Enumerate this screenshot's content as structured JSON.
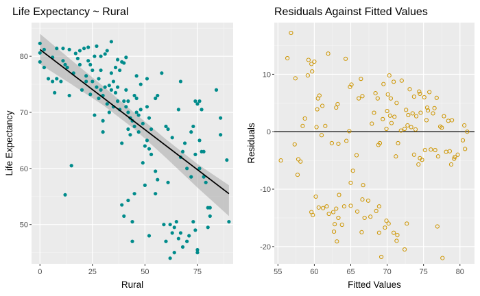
{
  "chart_data": [
    {
      "type": "scatter",
      "title": "Life Expectancy ~ Rural",
      "xlabel": "Rural",
      "ylabel": "Life Expectancy",
      "xlim": [
        -4,
        92
      ],
      "ylim": [
        43,
        86
      ],
      "xticks": [
        0,
        25,
        50,
        75
      ],
      "yticks": [
        50,
        60,
        70,
        80
      ],
      "x_tick_labels": [
        "0",
        "25",
        "50",
        "75"
      ],
      "y_tick_labels": [
        "50",
        "60",
        "70",
        "80"
      ],
      "grid": true,
      "point_color": "#008b8b",
      "point_style": "filled",
      "smooth": {
        "method": "linear fit with confidence band",
        "line_color": "#000000",
        "band_color": "#999999",
        "line": [
          [
            0,
            81.2
          ],
          [
            90,
            55.5
          ]
        ],
        "band_upper": [
          [
            0,
            84.0
          ],
          [
            15,
            79.3
          ],
          [
            30,
            74.7
          ],
          [
            45,
            69.9
          ],
          [
            60,
            65.2
          ],
          [
            75,
            60.8
          ],
          [
            90,
            57.0
          ]
        ],
        "band_lower": [
          [
            0,
            78.6
          ],
          [
            15,
            75.0
          ],
          [
            30,
            71.3
          ],
          [
            45,
            67.0
          ],
          [
            60,
            61.9
          ],
          [
            75,
            56.6
          ],
          [
            90,
            51.5
          ]
        ]
      },
      "points": [
        [
          0,
          82.3
        ],
        [
          0,
          80.6
        ],
        [
          0,
          79.0
        ],
        [
          2,
          81.2
        ],
        [
          2,
          78.0
        ],
        [
          4,
          76.0
        ],
        [
          6,
          79.8
        ],
        [
          6,
          75.5
        ],
        [
          7,
          73.5
        ],
        [
          8,
          81.4
        ],
        [
          8,
          76.0
        ],
        [
          10,
          75.5
        ],
        [
          11,
          81.4
        ],
        [
          11,
          79.2
        ],
        [
          12,
          78.5
        ],
        [
          12,
          55.3
        ],
        [
          13,
          78.0
        ],
        [
          14,
          81.2
        ],
        [
          14,
          73.0
        ],
        [
          15,
          60.5
        ],
        [
          16,
          77.0
        ],
        [
          17,
          80.5
        ],
        [
          18,
          79.6
        ],
        [
          19,
          81.0
        ],
        [
          19,
          78.5
        ],
        [
          20,
          74.0
        ],
        [
          21,
          81.4
        ],
        [
          22,
          76.5
        ],
        [
          22,
          75.5
        ],
        [
          23,
          81.6
        ],
        [
          23,
          79.2
        ],
        [
          24,
          78.5
        ],
        [
          24,
          73.2
        ],
        [
          25,
          77.5
        ],
        [
          25,
          75.5
        ],
        [
          26,
          80.0
        ],
        [
          26,
          69.5
        ],
        [
          27,
          81.8
        ],
        [
          27,
          74.5
        ],
        [
          28,
          76.0
        ],
        [
          28,
          72.5
        ],
        [
          29,
          80.0
        ],
        [
          29,
          77.5
        ],
        [
          29,
          74.0
        ],
        [
          30,
          73.0
        ],
        [
          30,
          68.5
        ],
        [
          30,
          66.5
        ],
        [
          31,
          80.4
        ],
        [
          31,
          74.5
        ],
        [
          32,
          81.0
        ],
        [
          32,
          71.5
        ],
        [
          33,
          74.8
        ],
        [
          33,
          70.0
        ],
        [
          34,
          82.6
        ],
        [
          34,
          77.0
        ],
        [
          34,
          74.0
        ],
        [
          35,
          75.5
        ],
        [
          35,
          71.0
        ],
        [
          36,
          78.0
        ],
        [
          36,
          73.5
        ],
        [
          37,
          79.4
        ],
        [
          37,
          74.5
        ],
        [
          37,
          72.0
        ],
        [
          38,
          77.5
        ],
        [
          38,
          70.5
        ],
        [
          39,
          79.0
        ],
        [
          39,
          64.5
        ],
        [
          39,
          53.5
        ],
        [
          40,
          78.8
        ],
        [
          40,
          72.0
        ],
        [
          40,
          51.5
        ],
        [
          41,
          79.8
        ],
        [
          41,
          74.0
        ],
        [
          41,
          71.0
        ],
        [
          42,
          72.0
        ],
        [
          42,
          70.0
        ],
        [
          42,
          67.0
        ],
        [
          42,
          54.3
        ],
        [
          43,
          69.0
        ],
        [
          43,
          66.0
        ],
        [
          44,
          68.5
        ],
        [
          44,
          50.5
        ],
        [
          44,
          47.0
        ],
        [
          45,
          73.0
        ],
        [
          45,
          67.5
        ],
        [
          45,
          55.5
        ],
        [
          46,
          76.5
        ],
        [
          46,
          72.5
        ],
        [
          46,
          70.0
        ],
        [
          47,
          69.5
        ],
        [
          47,
          66.5
        ],
        [
          48,
          75.0
        ],
        [
          48,
          70.5
        ],
        [
          49,
          68.0
        ],
        [
          49,
          61.0
        ],
        [
          50,
          64.0
        ],
        [
          50,
          57.0
        ],
        [
          51,
          76.0
        ],
        [
          51,
          71.0
        ],
        [
          51,
          65.0
        ],
        [
          52,
          69.0
        ],
        [
          52,
          63.5
        ],
        [
          52,
          48.0
        ],
        [
          53,
          67.0
        ],
        [
          53,
          62.5
        ],
        [
          55,
          72.5
        ],
        [
          55,
          59.5
        ],
        [
          55,
          55.5
        ],
        [
          56,
          73.0
        ],
        [
          56,
          58.0
        ],
        [
          58,
          77.0
        ],
        [
          59,
          50.0
        ],
        [
          60,
          47.0
        ],
        [
          60,
          67.5
        ],
        [
          61,
          67.0
        ],
        [
          61,
          57.5
        ],
        [
          62,
          50.0
        ],
        [
          62,
          44.0
        ],
        [
          63,
          65.5
        ],
        [
          63,
          48.5
        ],
        [
          64,
          45.0
        ],
        [
          64,
          49.5
        ],
        [
          65,
          50.5
        ],
        [
          66,
          70.5
        ],
        [
          66,
          47.5
        ],
        [
          67,
          75.5
        ],
        [
          67,
          62.0
        ],
        [
          67,
          48.5
        ],
        [
          68,
          63.0
        ],
        [
          68,
          46.0
        ],
        [
          69,
          64.5
        ],
        [
          70,
          60.0
        ],
        [
          70,
          47.0
        ],
        [
          71,
          48.0
        ],
        [
          72,
          58.5
        ],
        [
          72,
          66.5
        ],
        [
          73,
          67.5
        ],
        [
          73,
          50.5
        ],
        [
          74,
          72.0
        ],
        [
          74,
          62.5
        ],
        [
          74,
          49.0
        ],
        [
          75,
          71.5
        ],
        [
          75,
          45.5
        ],
        [
          75,
          45.0
        ],
        [
          76,
          72.0
        ],
        [
          76,
          65.0
        ],
        [
          76,
          60.0
        ],
        [
          77,
          70.5
        ],
        [
          77,
          63.0
        ],
        [
          78,
          63.0
        ],
        [
          78,
          58.5
        ],
        [
          79,
          57.5
        ],
        [
          80,
          53.0
        ],
        [
          80,
          49.5
        ],
        [
          81,
          53.0
        ],
        [
          81,
          51.5
        ],
        [
          84,
          74.0
        ],
        [
          86,
          69.0
        ],
        [
          86,
          66.0
        ],
        [
          89,
          61.5
        ],
        [
          90,
          50.5
        ]
      ]
    },
    {
      "type": "scatter",
      "title": "Residuals Against Fitted Values",
      "xlabel": "Fitted Values",
      "ylabel": "Residuals",
      "xlim": [
        54.5,
        82
      ],
      "ylim": [
        -23,
        19
      ],
      "xticks": [
        55,
        60,
        65,
        70,
        75,
        80
      ],
      "yticks": [
        -20,
        -10,
        0,
        10
      ],
      "x_tick_labels": [
        "55",
        "60",
        "65",
        "70",
        "75",
        "80"
      ],
      "y_tick_labels": [
        "-20",
        "-10",
        "0",
        "10"
      ],
      "grid": true,
      "point_color": "#cd9500",
      "point_style": "hollow",
      "reference_line": {
        "y": 0,
        "color": "#000000"
      },
      "points": [
        [
          55.4,
          -5.0
        ],
        [
          56.3,
          12.8
        ],
        [
          56.8,
          17.2
        ],
        [
          57.3,
          -2.2
        ],
        [
          57.4,
          9.3
        ],
        [
          57.7,
          -7.5
        ],
        [
          57.8,
          -4.8
        ],
        [
          58.1,
          -5.2
        ],
        [
          58.4,
          1.0
        ],
        [
          58.7,
          2.3
        ],
        [
          59.1,
          9.8
        ],
        [
          59.2,
          12.5
        ],
        [
          59.6,
          11.8
        ],
        [
          59.6,
          -14.0
        ],
        [
          59.7,
          10.5
        ],
        [
          59.8,
          -14.5
        ],
        [
          60.0,
          12.2
        ],
        [
          60.2,
          -11.3
        ],
        [
          60.3,
          0.8
        ],
        [
          60.4,
          3.9
        ],
        [
          60.5,
          5.8
        ],
        [
          60.6,
          -13.2
        ],
        [
          60.7,
          6.3
        ],
        [
          61.0,
          -0.6
        ],
        [
          61.1,
          4.5
        ],
        [
          61.2,
          -13.3
        ],
        [
          61.5,
          1.0
        ],
        [
          61.7,
          -13.0
        ],
        [
          61.9,
          13.6
        ],
        [
          62.0,
          -14.3
        ],
        [
          62.4,
          -2.0
        ],
        [
          62.6,
          -14.0
        ],
        [
          62.7,
          -17.4
        ],
        [
          62.8,
          -16.1
        ],
        [
          63.0,
          4.2
        ],
        [
          63.0,
          -13.4
        ],
        [
          63.1,
          -19.1
        ],
        [
          63.2,
          4.8
        ],
        [
          63.3,
          -2.1
        ],
        [
          63.3,
          -15.0
        ],
        [
          63.4,
          -11.0
        ],
        [
          63.8,
          -16.2
        ],
        [
          64.1,
          -13.0
        ],
        [
          64.3,
          12.7
        ],
        [
          64.4,
          -1.6
        ],
        [
          64.8,
          0.1
        ],
        [
          64.9,
          7.8
        ],
        [
          65.0,
          -8.9
        ],
        [
          65.0,
          -12.9
        ],
        [
          65.1,
          8.2
        ],
        [
          65.3,
          -6.8
        ],
        [
          65.8,
          -4.1
        ],
        [
          65.9,
          -13.9
        ],
        [
          66.1,
          5.8
        ],
        [
          66.4,
          9.2
        ],
        [
          66.5,
          -17.5
        ],
        [
          66.6,
          -11.8
        ],
        [
          66.6,
          6.2
        ],
        [
          66.7,
          -9.3
        ],
        [
          66.9,
          -15.0
        ],
        [
          67.4,
          -12.0
        ],
        [
          67.7,
          -14.8
        ],
        [
          67.9,
          1.4
        ],
        [
          68.2,
          3.3
        ],
        [
          68.4,
          6.7
        ],
        [
          68.5,
          -13.8
        ],
        [
          68.7,
          5.8
        ],
        [
          68.8,
          -2.3
        ],
        [
          68.9,
          -13.0
        ],
        [
          68.9,
          -17.6
        ],
        [
          69.0,
          -2.0
        ],
        [
          69.2,
          -21.8
        ],
        [
          69.4,
          2.2
        ],
        [
          69.5,
          8.3
        ],
        [
          69.7,
          -16.7
        ],
        [
          69.9,
          0.5
        ],
        [
          69.9,
          -15.5
        ],
        [
          70.0,
          3.6
        ],
        [
          70.1,
          6.5
        ],
        [
          70.2,
          -16.0
        ],
        [
          70.3,
          9.8
        ],
        [
          70.4,
          2.8
        ],
        [
          70.5,
          5.8
        ],
        [
          70.6,
          1.5
        ],
        [
          70.9,
          -17.6
        ],
        [
          70.9,
          8.7
        ],
        [
          71.0,
          2.6
        ],
        [
          71.2,
          -4.3
        ],
        [
          71.3,
          -19.0
        ],
        [
          71.3,
          5.0
        ],
        [
          71.4,
          -18.0
        ],
        [
          71.5,
          -2.0
        ],
        [
          71.9,
          0.2
        ],
        [
          72.0,
          8.9
        ],
        [
          72.4,
          0.5
        ],
        [
          72.4,
          -20.5
        ],
        [
          72.6,
          3.8
        ],
        [
          72.7,
          -16.0
        ],
        [
          72.8,
          1.1
        ],
        [
          72.9,
          2.9
        ],
        [
          73.1,
          7.4
        ],
        [
          73.3,
          0.8
        ],
        [
          73.5,
          3.2
        ],
        [
          73.7,
          6.1
        ],
        [
          73.7,
          -4.0
        ],
        [
          73.9,
          0.4
        ],
        [
          74.0,
          2.7
        ],
        [
          74.3,
          -5.7
        ],
        [
          74.4,
          7.0
        ],
        [
          74.5,
          -4.6
        ],
        [
          74.5,
          6.6
        ],
        [
          74.6,
          3.3
        ],
        [
          74.8,
          -4.9
        ],
        [
          75.1,
          6.0
        ],
        [
          75.2,
          -3.2
        ],
        [
          75.4,
          2.0
        ],
        [
          75.5,
          4.2
        ],
        [
          75.6,
          3.7
        ],
        [
          75.8,
          6.9
        ],
        [
          76.0,
          -3.1
        ],
        [
          76.3,
          3.2
        ],
        [
          76.5,
          4.1
        ],
        [
          76.6,
          -3.2
        ],
        [
          76.8,
          5.9
        ],
        [
          76.9,
          -16.5
        ],
        [
          77.0,
          -4.3
        ],
        [
          77.3,
          0.9
        ],
        [
          77.5,
          0.7
        ],
        [
          77.6,
          -22.0
        ],
        [
          77.8,
          2.7
        ],
        [
          78.1,
          -3.5
        ],
        [
          78.4,
          1.9
        ],
        [
          78.6,
          -3.4
        ],
        [
          78.8,
          -5.7
        ],
        [
          78.9,
          2.0
        ],
        [
          79.2,
          -4.7
        ],
        [
          79.3,
          -4.4
        ],
        [
          79.7,
          -4.0
        ],
        [
          80.4,
          -1.5
        ],
        [
          80.6,
          1.1
        ],
        [
          80.7,
          -3.0
        ],
        [
          81.0,
          0.0
        ]
      ]
    }
  ]
}
